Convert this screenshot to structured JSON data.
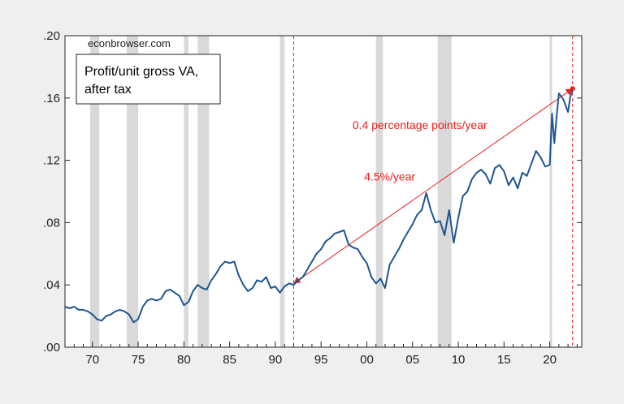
{
  "chart_data": {
    "type": "line",
    "title": "",
    "xlabel": "",
    "ylabel": "",
    "watermark": "econbrowser.com",
    "legend": [
      "Profit/unit gross VA,",
      "after tax"
    ],
    "legend_placement": "top-left",
    "xlim": [
      1967.0,
      2023.5
    ],
    "ylim": [
      0.0,
      0.2
    ],
    "x_ticks": [
      {
        "value": 1970,
        "label": "70"
      },
      {
        "value": 1975,
        "label": "75"
      },
      {
        "value": 1980,
        "label": "80"
      },
      {
        "value": 1985,
        "label": "85"
      },
      {
        "value": 1990,
        "label": "90"
      },
      {
        "value": 1995,
        "label": "95"
      },
      {
        "value": 2000,
        "label": "00"
      },
      {
        "value": 2005,
        "label": "05"
      },
      {
        "value": 2010,
        "label": "10"
      },
      {
        "value": 2015,
        "label": "15"
      },
      {
        "value": 2020,
        "label": "20"
      }
    ],
    "y_ticks": [
      {
        "value": 0.0,
        "label": ".00"
      },
      {
        "value": 0.04,
        "label": ".04"
      },
      {
        "value": 0.08,
        "label": ".08"
      },
      {
        "value": 0.12,
        "label": ".12"
      },
      {
        "value": 0.16,
        "label": ".16"
      },
      {
        "value": 0.2,
        "label": ".20"
      }
    ],
    "grid": false,
    "recessions": [
      [
        1969.75,
        1970.75
      ],
      [
        1973.75,
        1975.0
      ],
      [
        1980.0,
        1980.5
      ],
      [
        1981.5,
        1982.75
      ],
      [
        1990.5,
        1991.0
      ],
      [
        2001.0,
        2001.75
      ],
      [
        2007.75,
        2009.25
      ],
      [
        2020.0,
        2020.25
      ]
    ],
    "series": [
      {
        "color": "#1f5591",
        "x": [
          1967.0,
          1967.5,
          1968.0,
          1968.5,
          1969.0,
          1969.5,
          1970.0,
          1970.5,
          1971.0,
          1971.5,
          1972.0,
          1972.5,
          1973.0,
          1973.5,
          1974.0,
          1974.5,
          1975.0,
          1975.5,
          1976.0,
          1976.5,
          1977.0,
          1977.5,
          1978.0,
          1978.5,
          1979.0,
          1979.5,
          1980.0,
          1980.5,
          1981.0,
          1981.5,
          1982.0,
          1982.5,
          1983.0,
          1983.5,
          1984.0,
          1984.5,
          1985.0,
          1985.5,
          1986.0,
          1986.5,
          1987.0,
          1987.5,
          1988.0,
          1988.5,
          1989.0,
          1989.5,
          1990.0,
          1990.5,
          1991.0,
          1991.5,
          1992.0,
          1992.5,
          1993.0,
          1993.5,
          1994.0,
          1994.5,
          1995.0,
          1995.5,
          1996.0,
          1996.5,
          1997.0,
          1997.5,
          1998.0,
          1998.5,
          1999.0,
          1999.5,
          2000.0,
          2000.5,
          2001.0,
          2001.5,
          2002.0,
          2002.5,
          2003.0,
          2003.5,
          2004.0,
          2004.5,
          2005.0,
          2005.5,
          2006.0,
          2006.5,
          2007.0,
          2007.5,
          2008.0,
          2008.5,
          2009.0,
          2009.5,
          2010.0,
          2010.5,
          2011.0,
          2011.5,
          2012.0,
          2012.5,
          2013.0,
          2013.5,
          2014.0,
          2014.5,
          2015.0,
          2015.5,
          2016.0,
          2016.5,
          2017.0,
          2017.5,
          2018.0,
          2018.5,
          2019.0,
          2019.5,
          2020.0,
          2020.25,
          2020.5,
          2020.75,
          2021.0,
          2021.5,
          2022.0,
          2022.25,
          2022.5
        ],
        "values": [
          0.026,
          0.025,
          0.026,
          0.024,
          0.024,
          0.023,
          0.021,
          0.018,
          0.017,
          0.02,
          0.021,
          0.023,
          0.024,
          0.023,
          0.021,
          0.016,
          0.018,
          0.026,
          0.03,
          0.031,
          0.03,
          0.031,
          0.036,
          0.037,
          0.035,
          0.033,
          0.027,
          0.029,
          0.036,
          0.04,
          0.038,
          0.037,
          0.043,
          0.047,
          0.052,
          0.055,
          0.054,
          0.055,
          0.046,
          0.04,
          0.036,
          0.038,
          0.043,
          0.042,
          0.045,
          0.038,
          0.039,
          0.035,
          0.039,
          0.041,
          0.04,
          0.043,
          0.045,
          0.05,
          0.055,
          0.06,
          0.063,
          0.068,
          0.07,
          0.073,
          0.074,
          0.075,
          0.066,
          0.064,
          0.063,
          0.058,
          0.054,
          0.045,
          0.041,
          0.044,
          0.038,
          0.053,
          0.058,
          0.063,
          0.069,
          0.074,
          0.079,
          0.085,
          0.088,
          0.099,
          0.088,
          0.08,
          0.081,
          0.072,
          0.088,
          0.067,
          0.083,
          0.097,
          0.1,
          0.108,
          0.112,
          0.114,
          0.111,
          0.105,
          0.115,
          0.117,
          0.113,
          0.104,
          0.109,
          0.102,
          0.112,
          0.11,
          0.118,
          0.126,
          0.122,
          0.116,
          0.117,
          0.15,
          0.131,
          0.148,
          0.163,
          0.159,
          0.151,
          0.161,
          0.165
        ]
      }
    ],
    "reference_lines": [
      {
        "x": 1992.0,
        "color": "#e8201f",
        "style": "dashed"
      },
      {
        "x": 2022.5,
        "color": "#e8201f",
        "style": "dashed"
      }
    ],
    "trend_line": {
      "from": {
        "x": 1992.0,
        "y": 0.041
      },
      "to": {
        "x": 2022.5,
        "y": 0.166
      },
      "color": "#e8201f"
    },
    "annotations": [
      {
        "text": "0.4 percentage points/year",
        "x": 2005.8,
        "y": 0.14,
        "color": "#e8201f"
      },
      {
        "text": "4.5%/year",
        "x": 2002.5,
        "y": 0.107,
        "color": "#e8201f"
      }
    ],
    "colors": {
      "background": "#efefef",
      "plot_background": "#ffffff",
      "recession": "#d9d9d9",
      "axis": "#222222"
    }
  }
}
